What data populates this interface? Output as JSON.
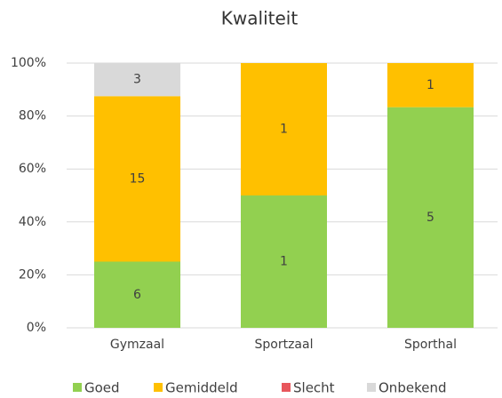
{
  "chart_data": {
    "type": "stacked_percent_bar",
    "title": "Kwaliteit",
    "categories": [
      "Gymzaal",
      "Sportzaal",
      "Sporthal"
    ],
    "series": [
      {
        "name": "Goed",
        "color": "#92d050",
        "values": [
          6,
          1,
          5
        ]
      },
      {
        "name": "Gemiddeld",
        "color": "#ffc000",
        "values": [
          15,
          1,
          1
        ]
      },
      {
        "name": "Slecht",
        "color": "#e8565c",
        "values": [
          0,
          0,
          0
        ]
      },
      {
        "name": "Onbekend",
        "color": "#d9d9d9",
        "values": [
          3,
          0,
          0
        ]
      }
    ],
    "ylim": [
      0,
      100
    ],
    "yticks": [
      {
        "value": 0,
        "label": "0%"
      },
      {
        "value": 20,
        "label": "20%"
      },
      {
        "value": 40,
        "label": "40%"
      },
      {
        "value": 60,
        "label": "60%"
      },
      {
        "value": 80,
        "label": "80%"
      },
      {
        "value": 100,
        "label": "100%"
      }
    ],
    "grid": true,
    "legend": "bottom"
  }
}
